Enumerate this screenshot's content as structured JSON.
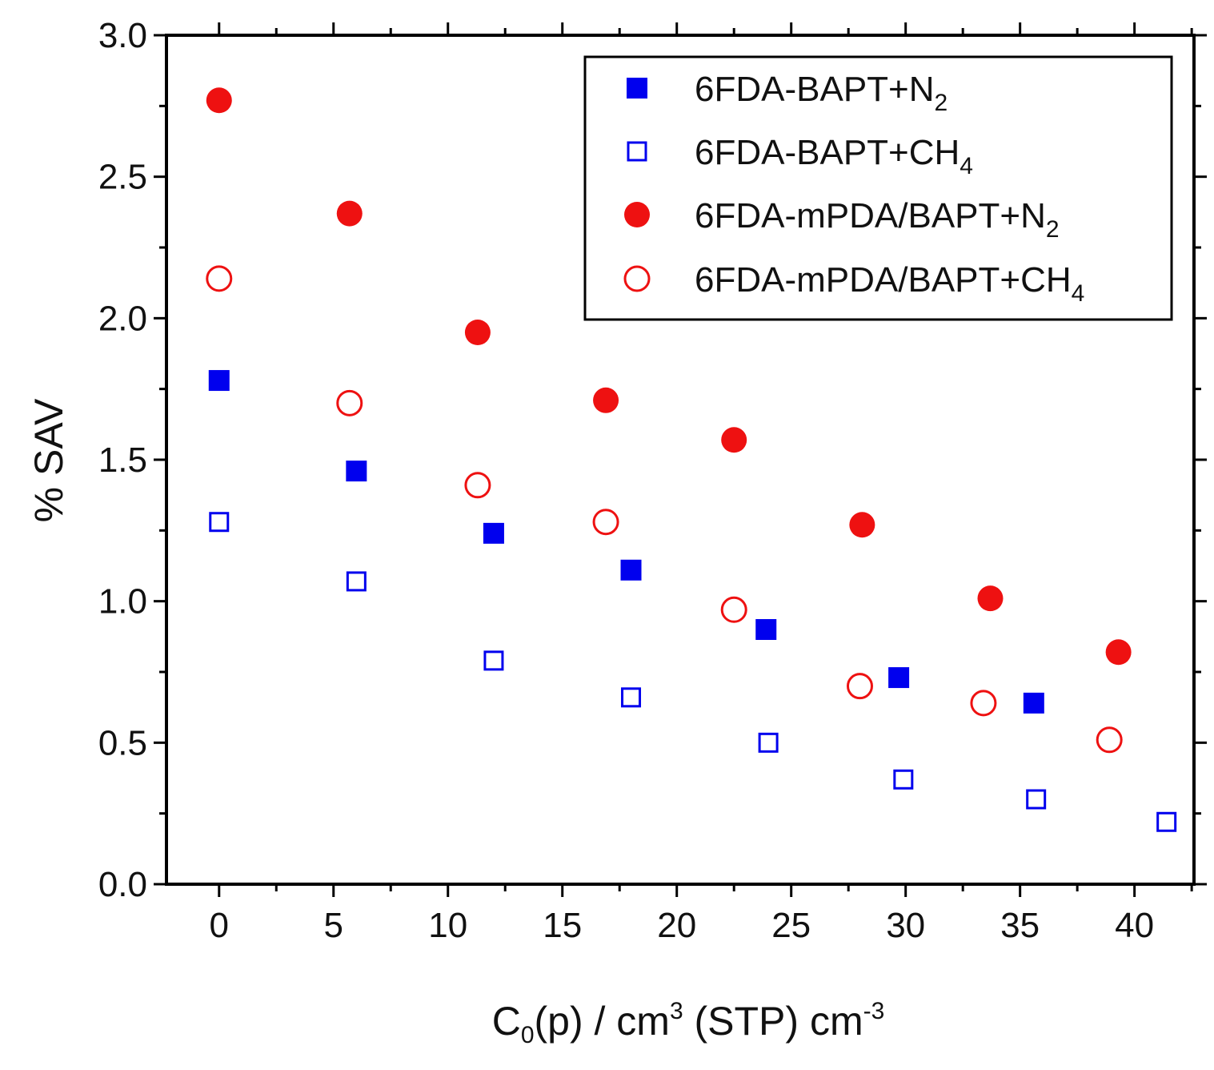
{
  "chart_data": {
    "type": "scatter",
    "title": "",
    "xlabel": {
      "main": "C",
      "sub": "0",
      "rest1": "(p) / cm",
      "sup1": "3",
      "rest2": " (STP) cm",
      "sup2": "-3"
    },
    "ylabel": "% SAV",
    "xlim": [
      -2.3,
      42.6
    ],
    "ylim": [
      0.0,
      3.0
    ],
    "x_ticks": [
      0,
      5,
      10,
      15,
      20,
      25,
      30,
      35,
      40
    ],
    "x_tick_labels": [
      "0",
      "5",
      "10",
      "15",
      "20",
      "25",
      "30",
      "35",
      "40"
    ],
    "y_ticks": [
      0.0,
      0.5,
      1.0,
      1.5,
      2.0,
      2.5,
      3.0
    ],
    "y_tick_labels": [
      "0.0",
      "0.5",
      "1.0",
      "1.5",
      "2.0",
      "2.5",
      "3.0"
    ],
    "grid": false,
    "legend_position": "top-right",
    "series": [
      {
        "name": "6FDA-BAPT+N2",
        "legend": {
          "main": "6FDA-BAPT+N",
          "sub": "2"
        },
        "marker": "square",
        "filled": true,
        "color": "#0000ee",
        "points": [
          [
            0,
            1.78
          ],
          [
            6.0,
            1.46
          ],
          [
            12.0,
            1.24
          ],
          [
            18.0,
            1.11
          ],
          [
            23.9,
            0.9
          ],
          [
            29.7,
            0.73
          ],
          [
            35.6,
            0.64
          ]
        ]
      },
      {
        "name": "6FDA-BAPT+CH4",
        "legend": {
          "main": "6FDA-BAPT+CH",
          "sub": "4"
        },
        "marker": "square",
        "filled": false,
        "color": "#0000ee",
        "points": [
          [
            0,
            1.28
          ],
          [
            6.0,
            1.07
          ],
          [
            12.0,
            0.79
          ],
          [
            18.0,
            0.66
          ],
          [
            24.0,
            0.5
          ],
          [
            29.9,
            0.37
          ],
          [
            35.7,
            0.3
          ],
          [
            41.4,
            0.22
          ]
        ]
      },
      {
        "name": "6FDA-mPDA/BAPT+N2",
        "legend": {
          "main": "6FDA-mPDA/BAPT+N",
          "sub": "2"
        },
        "marker": "circle",
        "filled": true,
        "color": "#ee1111",
        "points": [
          [
            0,
            2.77
          ],
          [
            5.7,
            2.37
          ],
          [
            11.3,
            1.95
          ],
          [
            16.9,
            1.71
          ],
          [
            22.5,
            1.57
          ],
          [
            28.1,
            1.27
          ],
          [
            33.7,
            1.01
          ],
          [
            39.3,
            0.82
          ]
        ]
      },
      {
        "name": "6FDA-mPDA/BAPT+CH4",
        "legend": {
          "main": "6FDA-mPDA/BAPT+CH",
          "sub": "4"
        },
        "marker": "circle",
        "filled": false,
        "color": "#ee1111",
        "points": [
          [
            0,
            2.14
          ],
          [
            5.7,
            1.7
          ],
          [
            11.3,
            1.41
          ],
          [
            16.9,
            1.28
          ],
          [
            22.5,
            0.97
          ],
          [
            28.0,
            0.7
          ],
          [
            33.4,
            0.64
          ],
          [
            38.9,
            0.51
          ]
        ]
      }
    ]
  }
}
